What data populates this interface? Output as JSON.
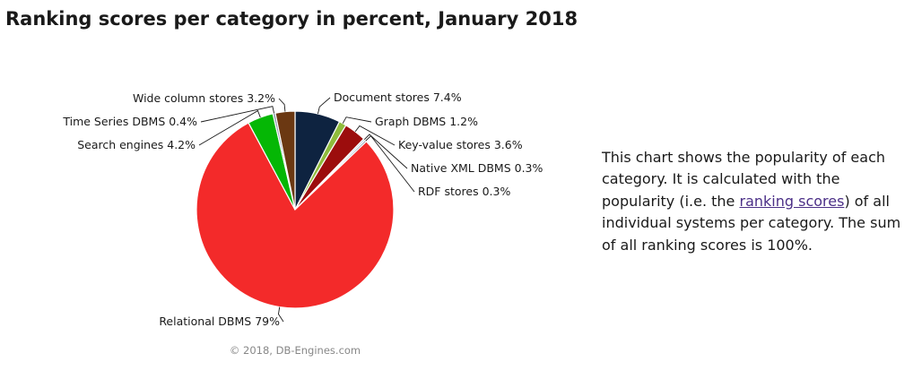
{
  "title": "Ranking scores per category in percent, January 2018",
  "chart_data": {
    "type": "pie",
    "title": "",
    "start_angle_deg": 0,
    "slices": [
      {
        "name": "Document stores",
        "value": 7.4,
        "label": "Document stores 7.4%",
        "color": "#0e2340",
        "label_side": "right"
      },
      {
        "name": "Graph DBMS",
        "value": 1.2,
        "label": "Graph DBMS 1.2%",
        "color": "#8fbc3c",
        "label_side": "right"
      },
      {
        "name": "Key-value stores",
        "value": 3.6,
        "label": "Key-value stores 3.6%",
        "color": "#9c0d0d",
        "label_side": "right"
      },
      {
        "name": "Native XML DBMS",
        "value": 0.3,
        "label": "Native XML DBMS 0.3%",
        "color": "#b7d6ea",
        "label_side": "right"
      },
      {
        "name": "RDF stores",
        "value": 0.3,
        "label": "RDF stores 0.3%",
        "color": "#7e93a8",
        "label_side": "right"
      },
      {
        "name": "Relational DBMS",
        "value": 79,
        "label": "Relational DBMS 79%",
        "color": "#f32a2a",
        "label_side": "left"
      },
      {
        "name": "Search engines",
        "value": 4.2,
        "label": "Search engines 4.2%",
        "color": "#05b705",
        "label_side": "left"
      },
      {
        "name": "Time Series DBMS",
        "value": 0.4,
        "label": "Time Series DBMS 0.4%",
        "color": "#8c98ad",
        "label_side": "left"
      },
      {
        "name": "Wide column stores",
        "value": 3.2,
        "label": "Wide column stores 3.2%",
        "color": "#6b3812",
        "label_side": "left"
      }
    ],
    "credits": "© 2018, DB-Engines.com"
  },
  "description": {
    "before": "This chart shows the popularity of each category. It is calculated with the popularity (i.e. the ",
    "link": "ranking scores",
    "after": ") of all individual systems per category. The sum of all ranking scores is 100%."
  }
}
